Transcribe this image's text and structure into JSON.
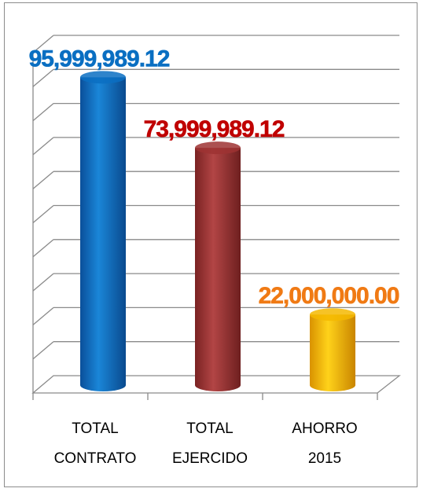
{
  "chart_data": {
    "type": "bar",
    "title": "",
    "xlabel": "",
    "ylabel": "",
    "ylim": [
      0,
      100000000
    ],
    "grid": true,
    "categories": [
      [
        "TOTAL",
        "CONTRATO"
      ],
      [
        "TOTAL",
        "EJERCIDO"
      ],
      [
        "AHORRO",
        "2015"
      ]
    ],
    "values": [
      95999989.12,
      73999989.12,
      22000000.0
    ],
    "value_labels": [
      "95,999,989.12",
      "73,999,989.12",
      "22,000,000.00"
    ],
    "colors": [
      "#0a6fc2",
      "#9e3333",
      "#f5b800"
    ],
    "label_colors": [
      "#0a6fc2",
      "#c00000",
      "#f07a14"
    ]
  }
}
